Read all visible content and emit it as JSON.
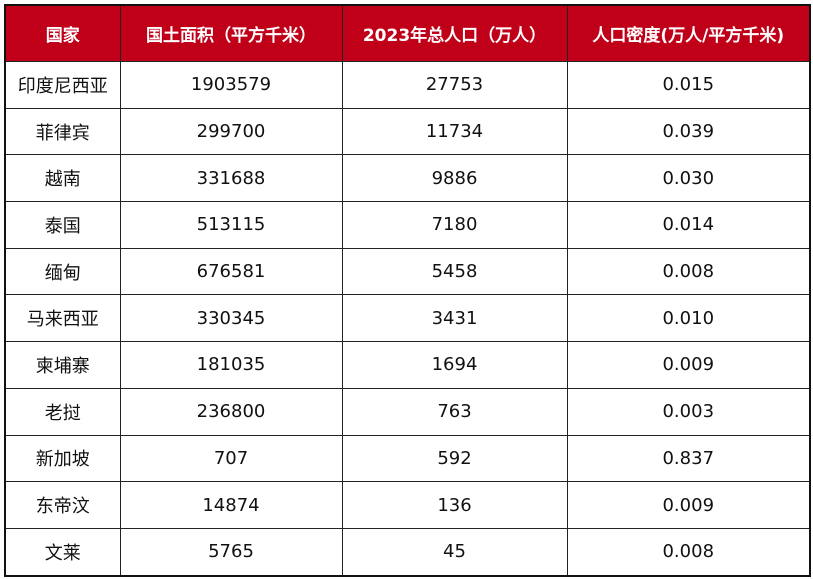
{
  "chart_data": {
    "type": "table",
    "header_color": "#C00018",
    "columns": [
      "国家",
      "国土面积（平方千米）",
      "2023年总人口（万人）",
      "人口密度(万人/平方千米)"
    ],
    "rows": [
      [
        "印度尼西亚",
        "1903579",
        "27753",
        "0.015"
      ],
      [
        "菲律宾",
        "299700",
        "11734",
        "0.039"
      ],
      [
        "越南",
        "331688",
        "9886",
        "0.030"
      ],
      [
        "泰国",
        "513115",
        "7180",
        "0.014"
      ],
      [
        "缅甸",
        "676581",
        "5458",
        "0.008"
      ],
      [
        "马来西亚",
        "330345",
        "3431",
        "0.010"
      ],
      [
        "柬埔寨",
        "181035",
        "1694",
        "0.009"
      ],
      [
        "老挝",
        "236800",
        "763",
        "0.003"
      ],
      [
        "新加坡",
        "707",
        "592",
        "0.837"
      ],
      [
        "东帝汶",
        "14874",
        "136",
        "0.009"
      ],
      [
        "文莱",
        "5765",
        "45",
        "0.008"
      ]
    ]
  }
}
